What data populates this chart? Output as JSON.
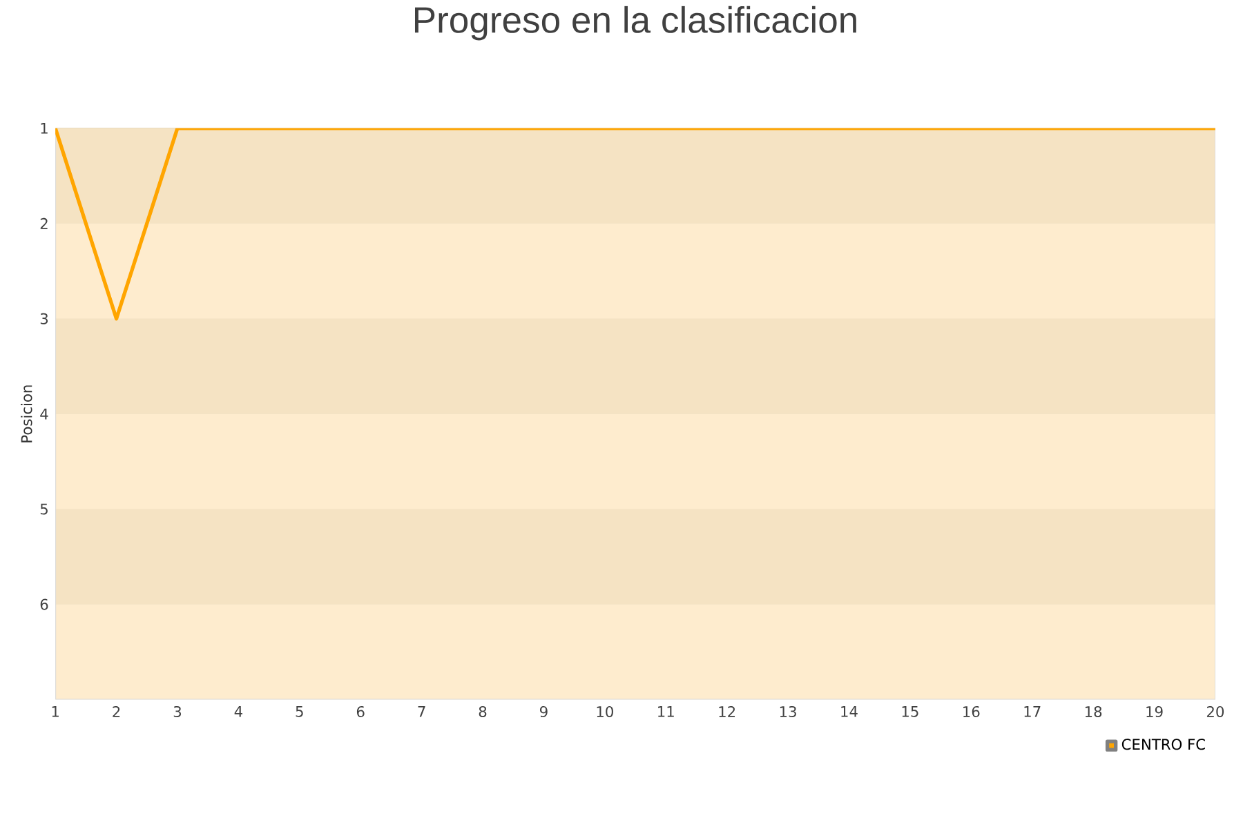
{
  "chart_data": {
    "type": "line",
    "title": "Progreso en la clasificacion",
    "ylabel": "Posicion",
    "x": [
      1,
      2,
      3,
      4,
      5,
      6,
      7,
      8,
      9,
      10,
      11,
      12,
      13,
      14,
      15,
      16,
      17,
      18,
      19,
      20
    ],
    "series": [
      {
        "name": "CENTRO FC",
        "color": "#ffa500",
        "values": [
          1,
          3,
          1,
          1,
          1,
          1,
          1,
          1,
          1,
          1,
          1,
          1,
          1,
          1,
          1,
          1,
          1,
          1,
          1,
          1
        ]
      }
    ],
    "xlim": [
      1,
      20
    ],
    "xticks": [
      1,
      2,
      3,
      4,
      5,
      6,
      7,
      8,
      9,
      10,
      11,
      12,
      13,
      14,
      15,
      16,
      17,
      18,
      19,
      20
    ],
    "ylim": [
      7,
      1
    ],
    "yticks": [
      1,
      2,
      3,
      4,
      5,
      6
    ],
    "bands": [
      {
        "axis": "y",
        "from": 1,
        "to": 2,
        "color": "#f5e3c3"
      },
      {
        "axis": "y",
        "from": 2,
        "to": 3,
        "color": "#feecce"
      },
      {
        "axis": "y",
        "from": 3,
        "to": 4,
        "color": "#f5e3c3"
      },
      {
        "axis": "y",
        "from": 4,
        "to": 5,
        "color": "#feecce"
      },
      {
        "axis": "y",
        "from": 5,
        "to": 6,
        "color": "#f5e3c3"
      },
      {
        "axis": "y",
        "from": 6,
        "to": 7,
        "color": "#feecce"
      }
    ],
    "grid": "y",
    "legend": "bottom right"
  }
}
